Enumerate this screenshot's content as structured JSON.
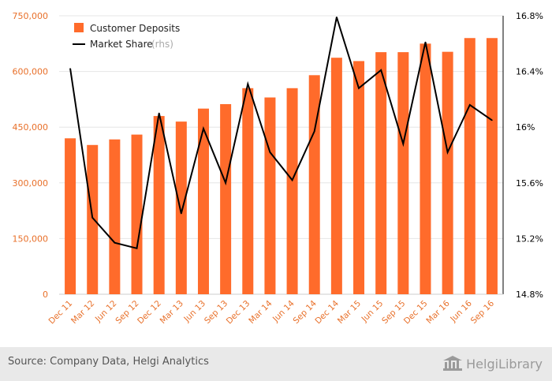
{
  "chart_data": {
    "type": "bar+line",
    "categories": [
      "Dec 11",
      "Mar 12",
      "Jun 12",
      "Sep 12",
      "Dec 12",
      "Mar 13",
      "Jun 13",
      "Sep 13",
      "Dec 13",
      "Mar 14",
      "Jun 14",
      "Sep 14",
      "Dec 14",
      "Mar 15",
      "Jun 15",
      "Sep 15",
      "Dec 15",
      "Mar 16",
      "Jun 16",
      "Sep 16"
    ],
    "series": [
      {
        "name": "Customer Deposits",
        "type": "bar",
        "axis": "left",
        "color": "#ff6b2b",
        "values": [
          420000,
          402000,
          417000,
          430000,
          480000,
          465000,
          500000,
          512000,
          555000,
          530000,
          555000,
          590000,
          637000,
          628000,
          652000,
          652000,
          675000,
          653000,
          690000,
          690000
        ]
      },
      {
        "name": "Market Share",
        "type": "line",
        "axis": "right",
        "color": "#000000",
        "values": [
          16.42,
          15.35,
          15.17,
          15.13,
          16.1,
          15.38,
          15.99,
          15.6,
          16.31,
          15.82,
          15.62,
          15.97,
          16.79,
          16.28,
          16.41,
          15.88,
          16.61,
          15.82,
          16.16,
          16.05
        ]
      }
    ],
    "left_axis": {
      "min": 0,
      "max": 750000,
      "ticks": [
        0,
        150000,
        300000,
        450000,
        600000,
        750000
      ],
      "tick_labels": [
        "0",
        "150,000",
        "300,000",
        "450,000",
        "600,000",
        "750,000"
      ]
    },
    "right_axis": {
      "min": 14.8,
      "max": 16.8,
      "ticks": [
        14.8,
        15.2,
        15.6,
        16.0,
        16.4,
        16.8
      ],
      "tick_labels": [
        "14.8%",
        "15.2%",
        "15.6%",
        "16%",
        "16.4%",
        "16.8%"
      ]
    },
    "legend": {
      "position": "top-left",
      "items": [
        {
          "label": "Customer Deposits",
          "suffix": ""
        },
        {
          "label": "Market Share",
          "suffix": "(rhs)"
        }
      ]
    },
    "grid": true
  },
  "footer": {
    "source": "Source: Company Data, Helgi Analytics",
    "brand": "HelgiLibrary"
  },
  "colors": {
    "bar": "#ff6b2b",
    "line": "#000000",
    "grid": "#e6e6e6",
    "left_ticks": "#e8702a",
    "footer_bg": "#e9e9e9"
  }
}
